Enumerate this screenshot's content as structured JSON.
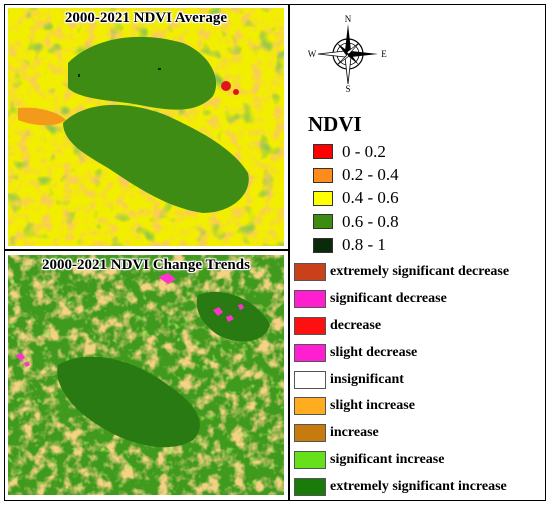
{
  "map_average": {
    "title": "2000-2021 NDVI Average",
    "colors": {
      "background": "#f2ee00",
      "orange": "#f39a1b",
      "green": "#3f8c14",
      "dark": "#0a2a08",
      "red": "#e0141a"
    }
  },
  "map_trends": {
    "title": "2000-2021 NDVI Change Trends",
    "colors": {
      "background": "#3f9a1e",
      "orange": "#e8a43a",
      "green": "#2a7a14",
      "light": "#6fd01c",
      "pink": "#ff33cc"
    }
  },
  "compass": {
    "north": "N",
    "south": "S",
    "east": "E",
    "west": "W"
  },
  "ndvi_legend": {
    "title": "NDVI",
    "items": [
      {
        "label": "0 - 0.2",
        "color": "#ff0000"
      },
      {
        "label": "0.2 - 0.4",
        "color": "#ff8c1a"
      },
      {
        "label": "0.4 - 0.6",
        "color": "#ffff00"
      },
      {
        "label": "0.6 - 0.8",
        "color": "#3d8c12"
      },
      {
        "label": "0.8 - 1",
        "color": "#0a2a0a"
      }
    ]
  },
  "trend_legend": {
    "items": [
      {
        "label": "extremely significant decrease",
        "color": "#c8411a"
      },
      {
        "label": "significant decrease",
        "color": "#ff1fcf"
      },
      {
        "label": "decrease",
        "color": "#ff1010"
      },
      {
        "label": "slight decrease",
        "color": "#ff1fd0"
      },
      {
        "label": "insignificant",
        "color": "#ffffff"
      },
      {
        "label": "slight increase",
        "color": "#ffad1f"
      },
      {
        "label": "increase",
        "color": "#c77a0e"
      },
      {
        "label": "significant increase",
        "color": "#66e01a"
      },
      {
        "label": "extremely significant increase",
        "color": "#1a7a0a"
      }
    ]
  }
}
